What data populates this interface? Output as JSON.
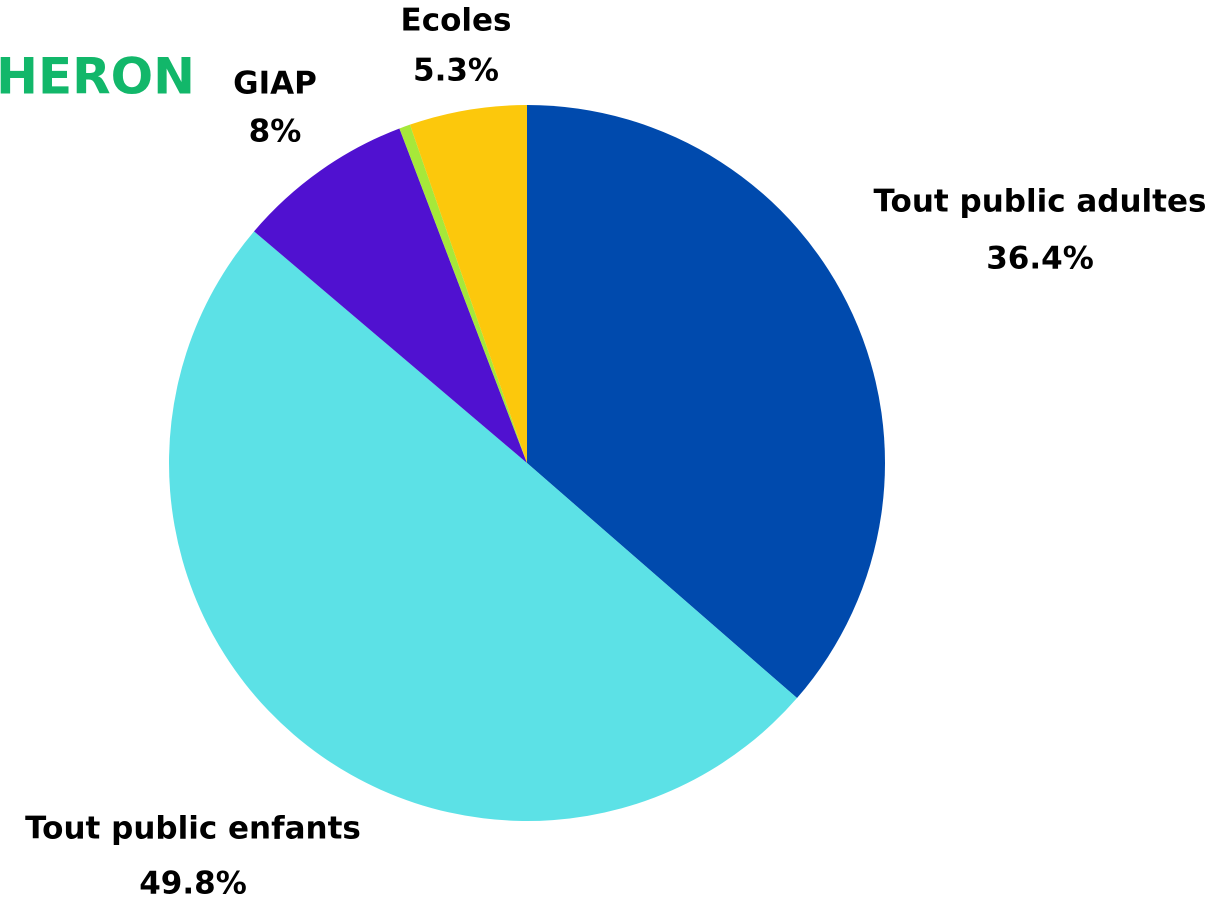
{
  "brand": "HERON",
  "chart_data": {
    "type": "pie",
    "categories": [
      "Tout public adultes",
      "Tout public enfants",
      "GIAP",
      null,
      "Ecoles"
    ],
    "values": [
      36.4,
      49.8,
      8,
      0.5,
      5.3
    ],
    "value_labels": [
      "36.4%",
      "49.8%",
      "8%",
      null,
      "5.3%"
    ],
    "colors": [
      "#004aad",
      "#5ce1e6",
      "#5011d0",
      "#a6e83a",
      "#fcc80c"
    ]
  }
}
